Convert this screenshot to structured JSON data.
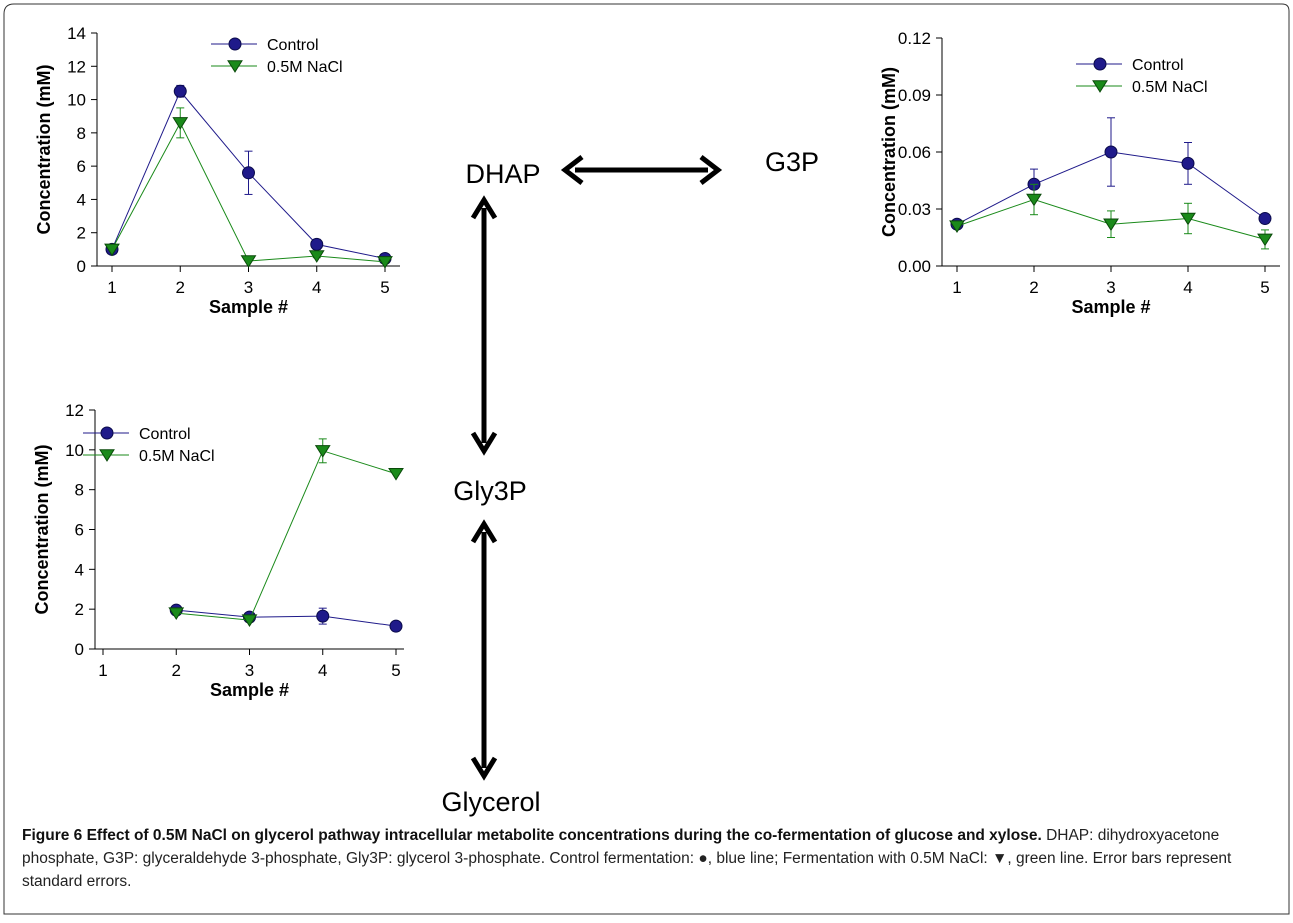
{
  "pathway": {
    "nodes": {
      "dhap": "DHAP",
      "g3p": "G3P",
      "gly3p": "Gly3P",
      "glycerol": "Glycerol"
    }
  },
  "caption": {
    "title": "Figure 6 Effect of 0.5M NaCl on glycerol pathway intracellular metabolite concentrations during the co-fermentation of glucose and xylose.",
    "body": "DHAP: dihydroxyacetone phosphate, G3P: glyceraldehyde 3-phosphate, Gly3P: glycerol 3-phosphate. Control fermentation: ●, blue line; Fermentation with 0.5M NaCl: ▼, green line. Error bars represent standard errors."
  },
  "colors": {
    "control": "#1f1a8a",
    "nacl": "#1a8a1a",
    "axis": "#000000"
  },
  "chart_data": [
    {
      "id": "dhap",
      "type": "line",
      "xlabel": "Sample #",
      "ylabel": "Concentration (mM)",
      "x": [
        1,
        2,
        3,
        4,
        5
      ],
      "ylim": [
        0,
        14
      ],
      "xticks": [
        "1",
        "2",
        "3",
        "4",
        "5"
      ],
      "yticks": [
        "0",
        "2",
        "4",
        "6",
        "8",
        "10",
        "12",
        "14"
      ],
      "legend_position": "top-right",
      "series": [
        {
          "name": "Control",
          "marker": "circle",
          "values": [
            1.0,
            10.5,
            5.6,
            1.3,
            0.45
          ],
          "errors": [
            0,
            0.35,
            1.3,
            0.3,
            0
          ]
        },
        {
          "name": "0.5M NaCl",
          "marker": "triangle-down",
          "values": [
            1.0,
            8.6,
            0.3,
            0.6,
            0.25
          ],
          "errors": [
            0,
            0.9,
            0,
            0.1,
            0
          ]
        }
      ]
    },
    {
      "id": "g3p",
      "type": "line",
      "xlabel": "Sample #",
      "ylabel": "Concentration (mM)",
      "x": [
        1,
        2,
        3,
        4,
        5
      ],
      "ylim": [
        0,
        0.12
      ],
      "xticks": [
        "1",
        "2",
        "3",
        "4",
        "5"
      ],
      "yticks": [
        "0.00",
        "0.03",
        "0.06",
        "0.09",
        "0.12"
      ],
      "legend_position": "top-right",
      "series": [
        {
          "name": "Control",
          "marker": "circle",
          "values": [
            0.022,
            0.043,
            0.06,
            0.054,
            0.025
          ],
          "errors": [
            0,
            0.008,
            0.018,
            0.011,
            0
          ]
        },
        {
          "name": "0.5M NaCl",
          "marker": "triangle-down",
          "values": [
            0.021,
            0.035,
            0.022,
            0.025,
            0.014
          ],
          "errors": [
            0,
            0.008,
            0.007,
            0.008,
            0.005
          ]
        }
      ]
    },
    {
      "id": "gly3p",
      "type": "line",
      "xlabel": "Sample #",
      "ylabel": "Concentration (mM)",
      "x": [
        2,
        3,
        4,
        5
      ],
      "xlim": [
        1,
        5
      ],
      "ylim": [
        0,
        12
      ],
      "xticks": [
        "1",
        "2",
        "3",
        "4",
        "5"
      ],
      "yticks": [
        "0",
        "2",
        "4",
        "6",
        "8",
        "10",
        "12"
      ],
      "legend_position": "top-left",
      "series": [
        {
          "name": "Control",
          "marker": "circle",
          "values": [
            1.95,
            1.6,
            1.65,
            1.15
          ],
          "errors": [
            0,
            0,
            0.4,
            0
          ]
        },
        {
          "name": "0.5M NaCl",
          "marker": "triangle-down",
          "values": [
            1.8,
            1.45,
            9.95,
            8.8
          ],
          "errors": [
            0,
            0,
            0.6,
            0
          ]
        }
      ]
    }
  ]
}
